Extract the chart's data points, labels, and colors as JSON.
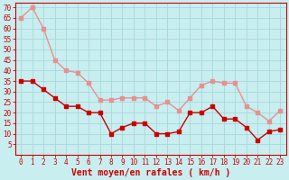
{
  "hours": [
    0,
    1,
    2,
    3,
    4,
    5,
    6,
    7,
    8,
    9,
    10,
    11,
    12,
    13,
    14,
    15,
    16,
    17,
    18,
    19,
    20,
    21,
    22,
    23
  ],
  "wind_avg": [
    35,
    35,
    31,
    27,
    23,
    23,
    20,
    20,
    10,
    13,
    15,
    15,
    10,
    10,
    11,
    20,
    20,
    23,
    17,
    17,
    13,
    7,
    11,
    12
  ],
  "wind_gust": [
    65,
    70,
    60,
    45,
    40,
    39,
    34,
    26,
    26,
    27,
    27,
    27,
    23,
    25,
    21,
    27,
    33,
    35,
    34,
    34,
    23,
    20,
    16,
    21
  ],
  "avg_color": "#cc0000",
  "gust_color": "#e89090",
  "bg_color": "#c8eef0",
  "grid_color": "#a8d8da",
  "axis_label_color": "#cc0000",
  "spine_color": "#cc0000",
  "xlabel": "Vent moyen/en rafales ( km/h )",
  "ylim": [
    0,
    72
  ],
  "yticks": [
    5,
    10,
    15,
    20,
    25,
    30,
    35,
    40,
    45,
    50,
    55,
    60,
    65,
    70
  ],
  "marker_size": 2.5,
  "line_width": 1.0,
  "tick_fontsize": 5.5,
  "xlabel_fontsize": 7.0
}
